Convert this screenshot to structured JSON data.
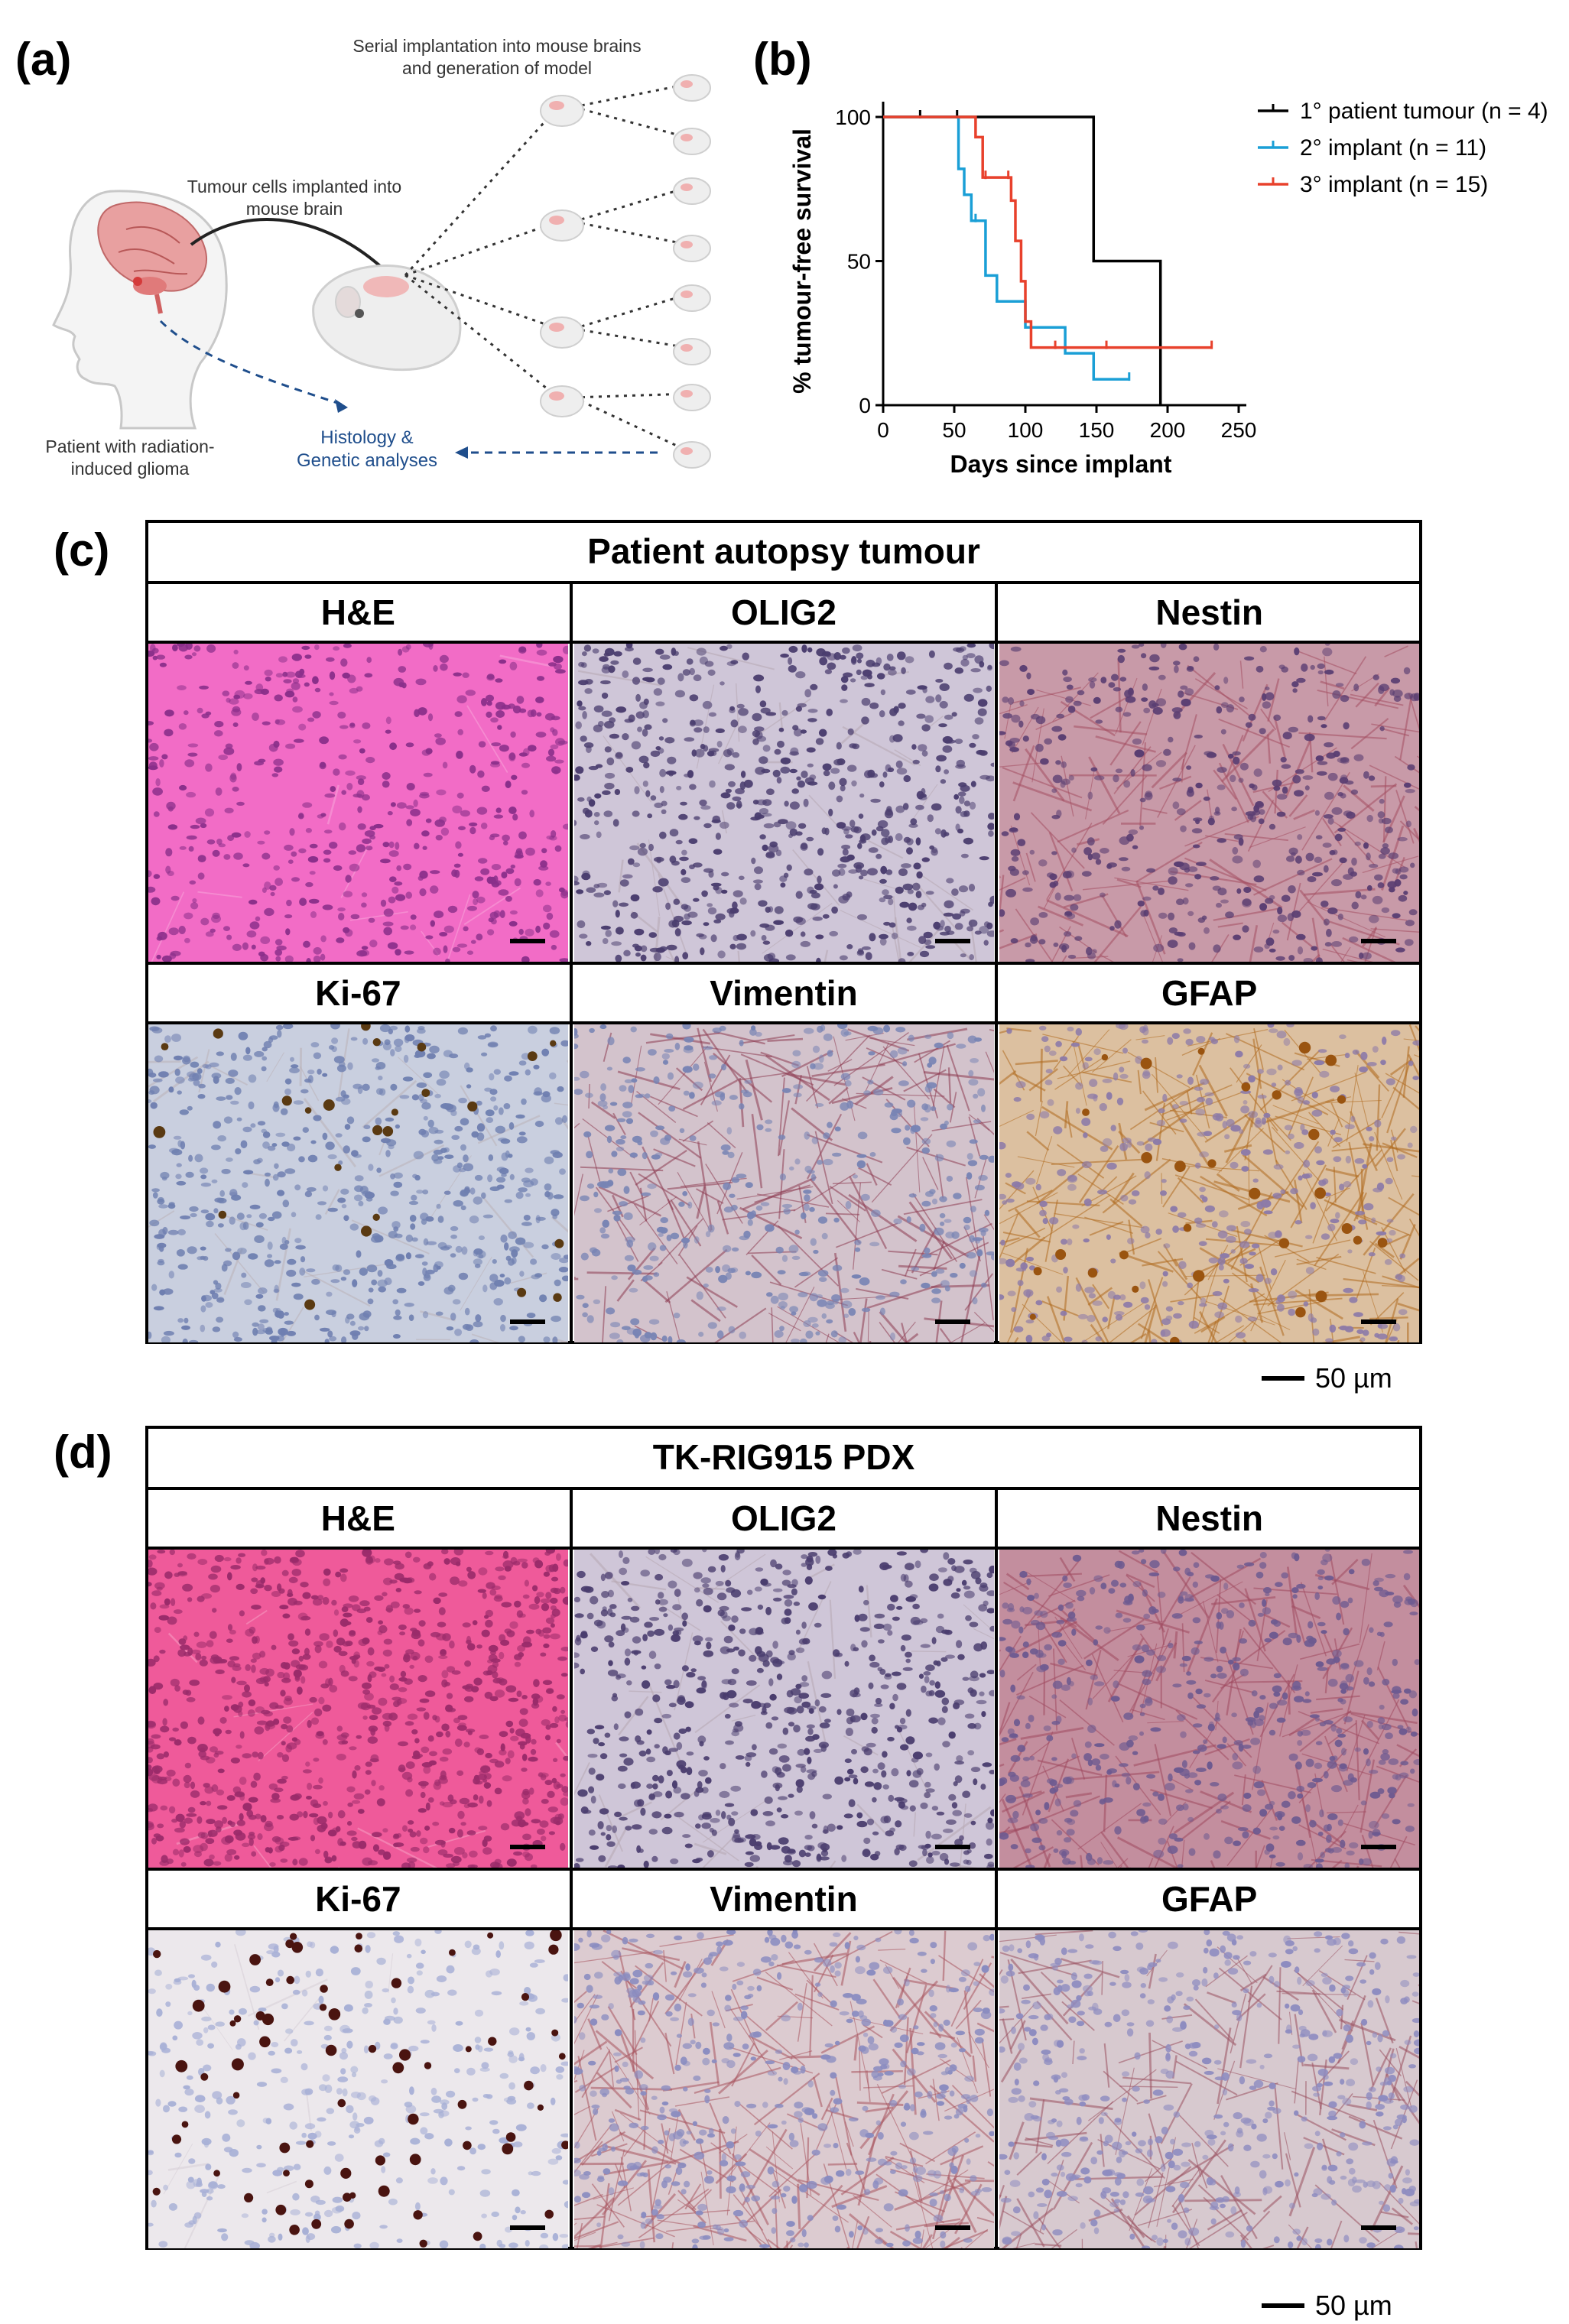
{
  "panel_labels": {
    "a": "(a)",
    "b": "(b)",
    "c": "(c)",
    "d": "(d)"
  },
  "schematic": {
    "serial_text": "Serial implantation into mouse brains and generation of model",
    "implant_text": "Tumour cells implanted into mouse brain",
    "patient_text": "Patient with radiation-induced glioma",
    "analyses_text": "Histology & Genetic analyses"
  },
  "chart_data": {
    "type": "line",
    "subtype": "kaplan-meier step",
    "xlabel": "Days since implant",
    "ylabel": "% tumour-free survival",
    "xlim": [
      0,
      250
    ],
    "ylim": [
      0,
      100
    ],
    "xticks": [
      0,
      50,
      100,
      150,
      200,
      250
    ],
    "yticks": [
      0,
      50,
      100
    ],
    "grid": false,
    "legend_position": "top-right",
    "series": [
      {
        "name": "1° patient tumour (n = 4)",
        "color": "#000000",
        "steps": [
          [
            0,
            100
          ],
          [
            148,
            100
          ],
          [
            148,
            50
          ],
          [
            195,
            50
          ],
          [
            195,
            0
          ]
        ],
        "censored": [
          [
            26,
            100
          ],
          [
            52,
            100
          ]
        ]
      },
      {
        "name": "2° implant (n = 11)",
        "color": "#1a9fd6",
        "steps": [
          [
            0,
            100
          ],
          [
            53,
            100
          ],
          [
            53,
            82
          ],
          [
            57,
            82
          ],
          [
            57,
            73
          ],
          [
            62,
            73
          ],
          [
            62,
            64
          ],
          [
            72,
            64
          ],
          [
            72,
            45
          ],
          [
            80,
            45
          ],
          [
            80,
            36
          ],
          [
            100,
            36
          ],
          [
            100,
            27
          ],
          [
            128,
            27
          ],
          [
            128,
            18
          ],
          [
            148,
            18
          ],
          [
            148,
            9
          ],
          [
            173,
            9
          ]
        ],
        "censored": [
          [
            65,
            64
          ],
          [
            173,
            9
          ]
        ]
      },
      {
        "name": "3° implant (n = 15)",
        "color": "#e8412c",
        "steps": [
          [
            0,
            100
          ],
          [
            65,
            100
          ],
          [
            65,
            93
          ],
          [
            70,
            93
          ],
          [
            70,
            79
          ],
          [
            90,
            79
          ],
          [
            90,
            71
          ],
          [
            93,
            71
          ],
          [
            93,
            57
          ],
          [
            97,
            57
          ],
          [
            97,
            43
          ],
          [
            100,
            43
          ],
          [
            100,
            29
          ],
          [
            104,
            29
          ],
          [
            104,
            20
          ],
          [
            231,
            20
          ]
        ],
        "censored": [
          [
            72,
            79
          ],
          [
            88,
            79
          ],
          [
            121,
            20
          ],
          [
            157,
            20
          ],
          [
            231,
            20
          ]
        ]
      }
    ]
  },
  "panel_c": {
    "title": "Patient autopsy tumour",
    "row1": [
      "H&E",
      "OLIG2",
      "Nestin"
    ],
    "row2": [
      "Ki-67",
      "Vimentin",
      "GFAP"
    ],
    "scale": "50 µm"
  },
  "panel_d": {
    "title": "TK-RIG915 PDX",
    "row1": [
      "H&E",
      "OLIG2",
      "Nestin"
    ],
    "row2": [
      "Ki-67",
      "Vimentin",
      "GFAP"
    ],
    "scale": "50 µm"
  },
  "stain_colors": {
    "he_c": "#f26cc6",
    "olig2": "#cfc6d8",
    "nestin": "#c89aa8",
    "ki67_c": "#c9cfdf",
    "vimentin": "#d3c3cc",
    "gfap": "#dcc0a0",
    "he_d": "#ef5a9a",
    "nestin_d": "#c38e9e",
    "ki67_d": "#ece8ec",
    "vimentin_d": "#dccbd0",
    "gfap_d": "#d7c9cf"
  }
}
